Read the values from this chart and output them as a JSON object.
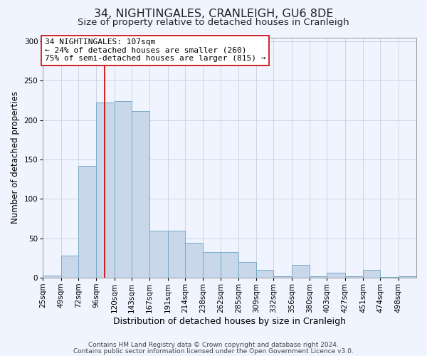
{
  "title": "34, NIGHTINGALES, CRANLEIGH, GU6 8DE",
  "subtitle": "Size of property relative to detached houses in Cranleigh",
  "xlabel": "Distribution of detached houses by size in Cranleigh",
  "ylabel": "Number of detached properties",
  "footnote1": "Contains HM Land Registry data © Crown copyright and database right 2024.",
  "footnote2": "Contains public sector information licensed under the Open Government Licence v3.0.",
  "bar_labels": [
    "25sqm",
    "49sqm",
    "72sqm",
    "96sqm",
    "120sqm",
    "143sqm",
    "167sqm",
    "191sqm",
    "214sqm",
    "238sqm",
    "262sqm",
    "285sqm",
    "309sqm",
    "332sqm",
    "356sqm",
    "380sqm",
    "403sqm",
    "427sqm",
    "451sqm",
    "474sqm",
    "498sqm"
  ],
  "bar_values": [
    3,
    28,
    142,
    222,
    224,
    211,
    60,
    60,
    44,
    32,
    32,
    20,
    10,
    2,
    16,
    2,
    6,
    2,
    10,
    1,
    2
  ],
  "bar_color": "#c8d8ea",
  "bar_edge_color": "#7aaac8",
  "ylim": [
    0,
    305
  ],
  "yticks": [
    0,
    50,
    100,
    150,
    200,
    250,
    300
  ],
  "vline_x": 107,
  "vline_color": "#cc0000",
  "annotation_title": "34 NIGHTINGALES: 107sqm",
  "annotation_line2": "← 24% of detached houses are smaller (260)",
  "annotation_line3": "75% of semi-detached houses are larger (815) →",
  "annotation_box_color": "#ffffff",
  "annotation_box_edge": "#cc0000",
  "background_color": "#f0f4ff",
  "grid_color": "#c8d0dc",
  "title_fontsize": 11.5,
  "subtitle_fontsize": 9.5,
  "xlabel_fontsize": 9,
  "ylabel_fontsize": 8.5,
  "tick_fontsize": 7.5,
  "annotation_fontsize": 8,
  "footnote_fontsize": 6.5,
  "bin_starts": [
    25,
    49,
    72,
    96,
    120,
    143,
    167,
    191,
    214,
    238,
    262,
    285,
    309,
    332,
    356,
    380,
    403,
    427,
    451,
    474,
    498
  ]
}
